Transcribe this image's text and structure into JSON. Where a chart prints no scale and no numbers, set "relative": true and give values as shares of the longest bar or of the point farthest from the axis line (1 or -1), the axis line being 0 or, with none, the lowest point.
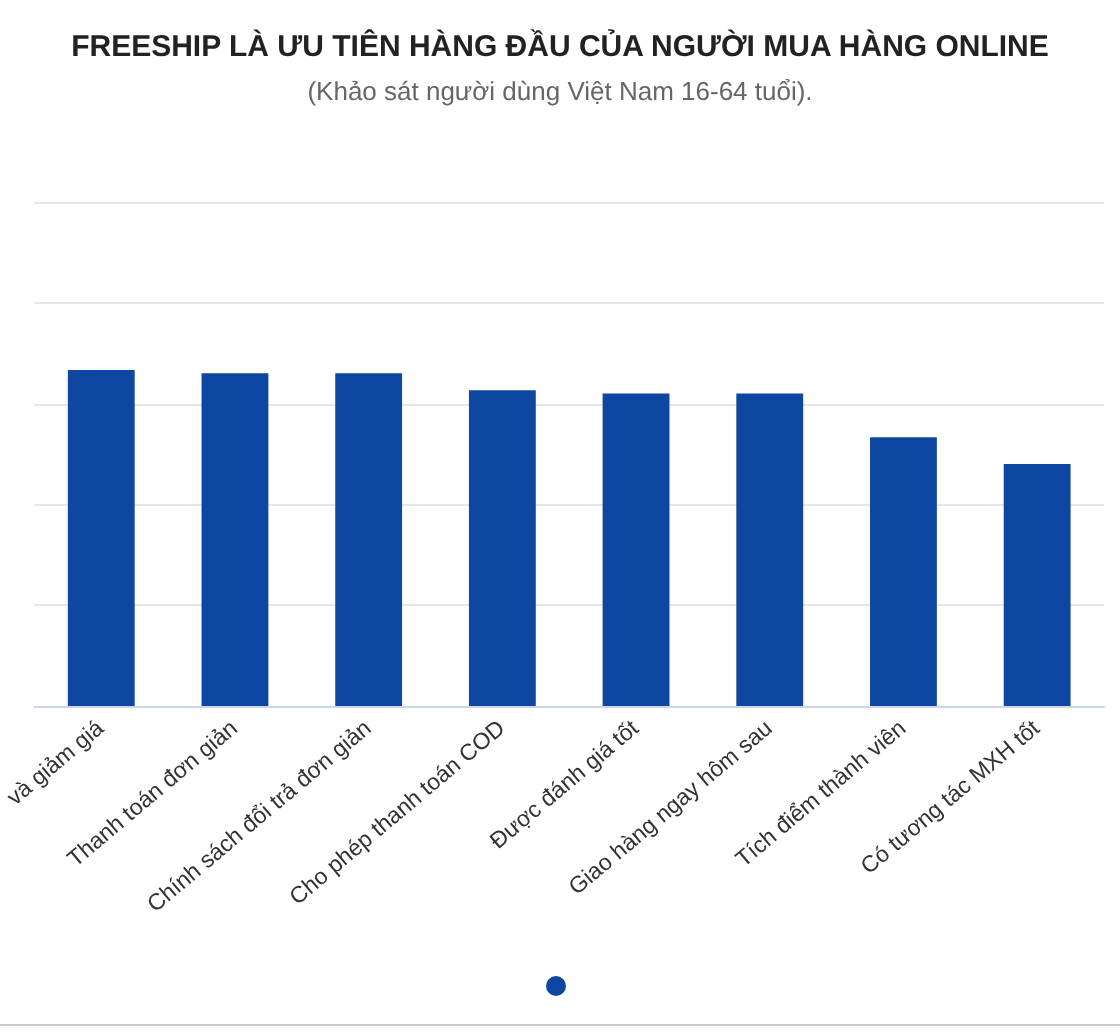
{
  "chart_data": {
    "type": "bar",
    "title": "FREESHIP LÀ ƯU TIÊN HÀNG ĐẦU CỦA NGƯỜI MUA HÀNG ONLINE",
    "subtitle": "(Khảo sát người dùng Việt Nam 16-64 tuổi).",
    "categories": [
      "và giảm giá",
      "Thanh toán đơn giản",
      "Chính sách đổi trả đơn giản",
      "Cho phép thanh toán COD",
      "Được đánh giá tốt",
      "Giao hàng ngay hôm sau",
      "Tích điểm thành viên",
      "Có tương tác MXH tốt"
    ],
    "values": [
      1,
      0.99,
      0.99,
      0.94,
      0.93,
      0.93,
      0.8,
      0.72
    ],
    "color": "#0d47a1",
    "relative": true,
    "grid": "y"
  }
}
